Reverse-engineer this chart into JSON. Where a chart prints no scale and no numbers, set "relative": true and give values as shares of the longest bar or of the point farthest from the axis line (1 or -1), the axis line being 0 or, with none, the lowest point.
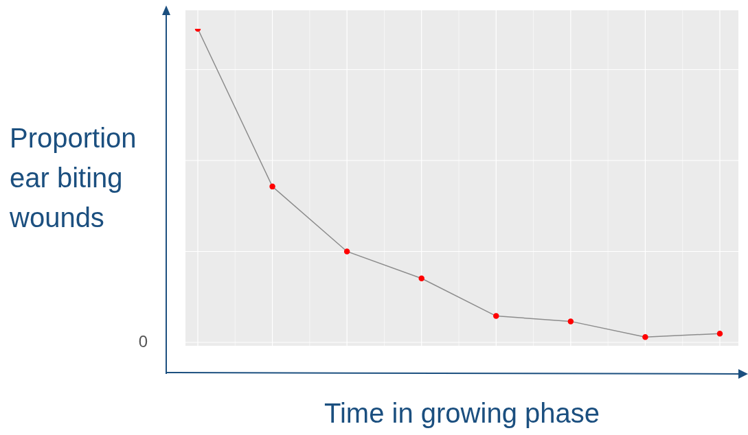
{
  "chart_data": {
    "type": "line",
    "relative": true,
    "xlabel": "Time in growing phase",
    "ylabel": "Proportion ear biting wounds",
    "categories": [
      null,
      null,
      null,
      null,
      null,
      null,
      null,
      null
    ],
    "series": [
      {
        "color": "#8c8c8c",
        "colors": [
          "#ff0000",
          "#ff0000",
          "#ff0000",
          "#ff0000",
          "#ff0000",
          "#ff0000",
          "#ff0000",
          "#ff0000"
        ],
        "values": [
          1,
          0.497,
          0.29,
          0.204,
          0.084,
          0.067,
          0.017,
          0.028
        ]
      }
    ],
    "annotations": [
      "0"
    ],
    "grid": true,
    "marker": "circle",
    "line_style": "solid",
    "legend": false
  }
}
